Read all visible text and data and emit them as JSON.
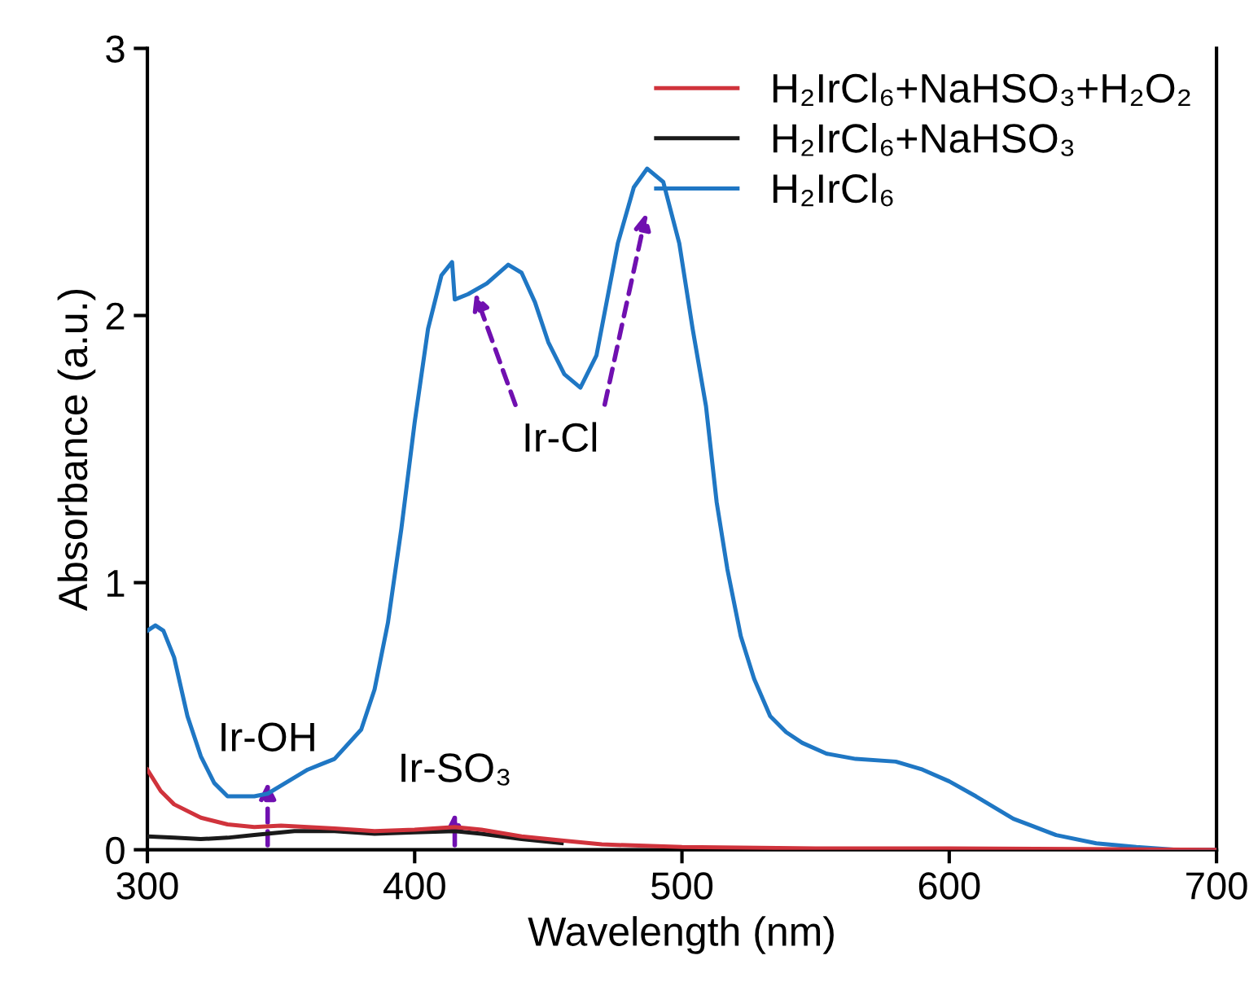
{
  "chart_data": {
    "type": "line",
    "xlabel": "Wavelength (nm)",
    "ylabel": "Absorbance (a.u.)",
    "xlim": [
      300,
      700
    ],
    "xticks": [
      300,
      400,
      500,
      600,
      700
    ],
    "ylim": [
      0,
      3
    ],
    "yticks": [
      0,
      1,
      2,
      3
    ],
    "grid": false,
    "legend": "top right",
    "marker": "none",
    "line_style": "solid",
    "series": [
      {
        "name": "H₂IrCl₆+NaHSO₃+H₂O₂",
        "color": "#d0333c",
        "x": [
          300,
          305,
          310,
          320,
          330,
          340,
          350,
          360,
          370,
          385,
          400,
          415,
          425,
          440,
          455,
          470,
          500,
          550,
          600,
          650,
          700
        ],
        "values": [
          0.3,
          0.22,
          0.17,
          0.12,
          0.095,
          0.085,
          0.09,
          0.085,
          0.08,
          0.07,
          0.075,
          0.085,
          0.075,
          0.05,
          0.035,
          0.02,
          0.01,
          0.005,
          0.005,
          0.003,
          0
        ]
      },
      {
        "name": "H₂IrCl₆+NaHSO₃",
        "color": "#1a1a1a",
        "x": [
          300,
          310,
          320,
          330,
          340,
          355,
          370,
          385,
          400,
          415,
          425,
          440,
          455
        ],
        "values": [
          0.05,
          0.045,
          0.04,
          0.045,
          0.055,
          0.07,
          0.07,
          0.06,
          0.065,
          0.07,
          0.06,
          0.04,
          0.025
        ]
      },
      {
        "name": "H₂IrCl₆",
        "color": "#1f77c4",
        "x": [
          300,
          303,
          306,
          310,
          315,
          320,
          325,
          330,
          340,
          345,
          350,
          360,
          365,
          370,
          380,
          385,
          390,
          395,
          400,
          405,
          410,
          414,
          415,
          420,
          427,
          435,
          440,
          445,
          450,
          456,
          462,
          468,
          476,
          482,
          487,
          493,
          499,
          504,
          509,
          513,
          517,
          522,
          527,
          533,
          539,
          545,
          554,
          565,
          580,
          590,
          600,
          610,
          624,
          640,
          655,
          670,
          685,
          700
        ],
        "values": [
          0.82,
          0.84,
          0.82,
          0.72,
          0.5,
          0.35,
          0.25,
          0.2,
          0.2,
          0.21,
          0.24,
          0.3,
          0.32,
          0.34,
          0.45,
          0.6,
          0.85,
          1.2,
          1.6,
          1.95,
          2.15,
          2.2,
          2.06,
          2.08,
          2.12,
          2.19,
          2.16,
          2.05,
          1.9,
          1.78,
          1.73,
          1.85,
          2.27,
          2.48,
          2.55,
          2.5,
          2.27,
          1.95,
          1.66,
          1.3,
          1.05,
          0.8,
          0.64,
          0.5,
          0.44,
          0.4,
          0.36,
          0.34,
          0.33,
          0.3,
          0.256,
          0.2,
          0.116,
          0.055,
          0.024,
          0.01,
          0,
          0
        ]
      }
    ],
    "annotations": [
      {
        "text": "Ir-OH",
        "x": 345,
        "y": 0.2
      },
      {
        "text": "Ir-SO₃",
        "x": 415,
        "y": 0.085
      },
      {
        "text": "Ir-Cl",
        "x": 422,
        "y": 2.08
      }
    ]
  }
}
